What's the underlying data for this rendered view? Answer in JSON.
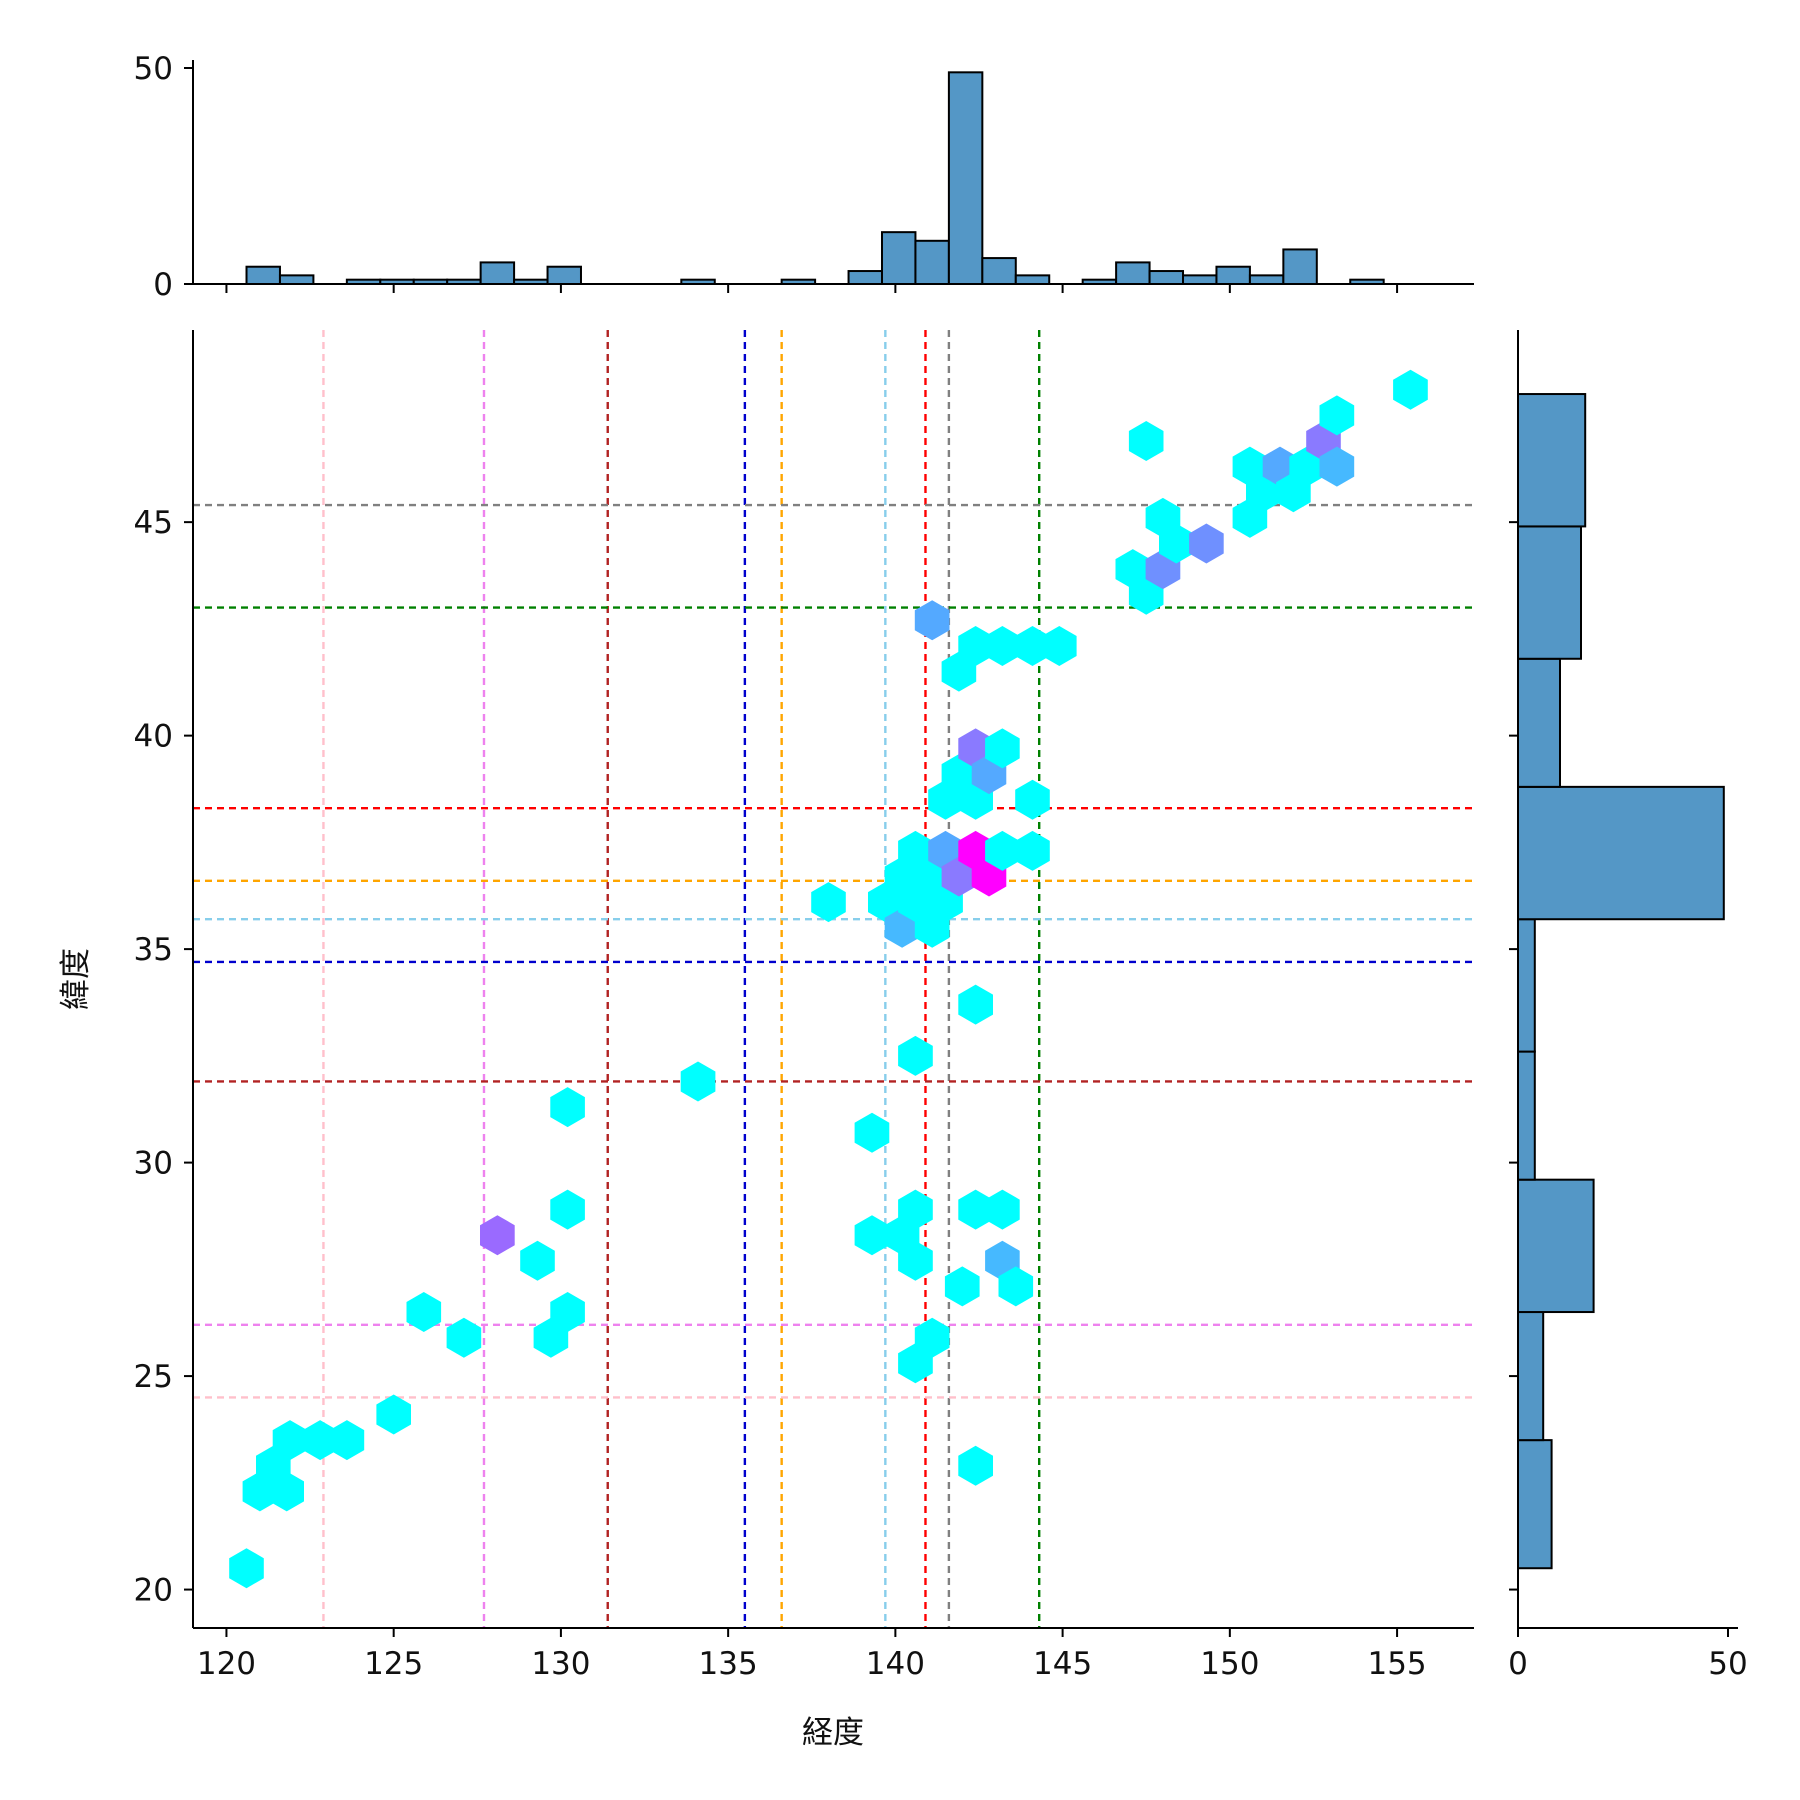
{
  "chart_data": {
    "type": "hexbin-jointplot",
    "xlabel": "経度",
    "ylabel": "緯度",
    "xlim": [
      119,
      157.3
    ],
    "ylim": [
      19.1,
      49.5
    ],
    "xticks": [
      120,
      125,
      130,
      135,
      140,
      145,
      150,
      155
    ],
    "yticks": [
      20,
      25,
      30,
      35,
      40,
      45
    ],
    "marginal_x": {
      "yticks": [
        0,
        50
      ],
      "bins": [
        {
          "x0": 120.6,
          "x1": 121.6,
          "count": 4
        },
        {
          "x0": 121.6,
          "x1": 122.6,
          "count": 2
        },
        {
          "x0": 123.6,
          "x1": 124.6,
          "count": 1
        },
        {
          "x0": 124.6,
          "x1": 125.6,
          "count": 1
        },
        {
          "x0": 125.6,
          "x1": 126.6,
          "count": 1
        },
        {
          "x0": 126.6,
          "x1": 127.6,
          "count": 1
        },
        {
          "x0": 127.6,
          "x1": 128.6,
          "count": 5
        },
        {
          "x0": 128.6,
          "x1": 129.6,
          "count": 1
        },
        {
          "x0": 129.6,
          "x1": 130.6,
          "count": 4
        },
        {
          "x0": 133.6,
          "x1": 134.6,
          "count": 1
        },
        {
          "x0": 136.6,
          "x1": 137.6,
          "count": 1
        },
        {
          "x0": 138.6,
          "x1": 139.6,
          "count": 3
        },
        {
          "x0": 139.6,
          "x1": 140.6,
          "count": 12
        },
        {
          "x0": 140.6,
          "x1": 141.6,
          "count": 10
        },
        {
          "x0": 141.6,
          "x1": 142.6,
          "count": 49
        },
        {
          "x0": 142.6,
          "x1": 143.6,
          "count": 6
        },
        {
          "x0": 143.6,
          "x1": 144.6,
          "count": 2
        },
        {
          "x0": 145.6,
          "x1": 146.6,
          "count": 1
        },
        {
          "x0": 146.6,
          "x1": 147.6,
          "count": 5
        },
        {
          "x0": 147.6,
          "x1": 148.6,
          "count": 3
        },
        {
          "x0": 148.6,
          "x1": 149.6,
          "count": 2
        },
        {
          "x0": 149.6,
          "x1": 150.6,
          "count": 4
        },
        {
          "x0": 150.6,
          "x1": 151.6,
          "count": 2
        },
        {
          "x0": 151.6,
          "x1": 152.6,
          "count": 8
        },
        {
          "x0": 153.6,
          "x1": 154.6,
          "count": 1
        }
      ]
    },
    "marginal_y": {
      "xticks": [
        0,
        50
      ],
      "bins": [
        {
          "y0": 20.5,
          "y1": 23.5,
          "count": 8
        },
        {
          "y0": 23.5,
          "y1": 26.5,
          "count": 6
        },
        {
          "y0": 26.5,
          "y1": 29.6,
          "count": 18
        },
        {
          "y0": 29.6,
          "y1": 32.6,
          "count": 4
        },
        {
          "y0": 32.6,
          "y1": 35.7,
          "count": 4
        },
        {
          "y0": 35.7,
          "y1": 38.8,
          "count": 49
        },
        {
          "y0": 38.8,
          "y1": 41.8,
          "count": 10
        },
        {
          "y0": 41.8,
          "y1": 44.9,
          "count": 15
        },
        {
          "y0": 44.9,
          "y1": 48.0,
          "count": 16
        }
      ]
    },
    "reference_lines": [
      {
        "axis": "x",
        "value": 122.9,
        "color": "#ffc0cb"
      },
      {
        "axis": "x",
        "value": 127.7,
        "color": "#ee82ee"
      },
      {
        "axis": "x",
        "value": 131.4,
        "color": "#b22222"
      },
      {
        "axis": "x",
        "value": 135.5,
        "color": "#0000cd"
      },
      {
        "axis": "x",
        "value": 136.6,
        "color": "#ffa500"
      },
      {
        "axis": "x",
        "value": 139.7,
        "color": "#87ceeb"
      },
      {
        "axis": "x",
        "value": 140.9,
        "color": "#ff0000"
      },
      {
        "axis": "x",
        "value": 141.6,
        "color": "#808080"
      },
      {
        "axis": "x",
        "value": 144.3,
        "color": "#008000"
      },
      {
        "axis": "y",
        "value": 45.4,
        "color": "#808080"
      },
      {
        "axis": "y",
        "value": 43.0,
        "color": "#008000"
      },
      {
        "axis": "y",
        "value": 38.3,
        "color": "#ff0000"
      },
      {
        "axis": "y",
        "value": 36.6,
        "color": "#ffa500"
      },
      {
        "axis": "y",
        "value": 35.7,
        "color": "#87ceeb"
      },
      {
        "axis": "y",
        "value": 34.7,
        "color": "#0000cd"
      },
      {
        "axis": "y",
        "value": 31.9,
        "color": "#b22222"
      },
      {
        "axis": "y",
        "value": 26.2,
        "color": "#ee82ee"
      },
      {
        "axis": "y",
        "value": 24.5,
        "color": "#ffc0cb"
      }
    ],
    "hexbins": [
      {
        "x": 120.6,
        "y": 20.5,
        "color": "#00ffff"
      },
      {
        "x": 121.0,
        "y": 22.3,
        "color": "#00ffff"
      },
      {
        "x": 121.8,
        "y": 22.3,
        "color": "#00ffff"
      },
      {
        "x": 121.4,
        "y": 22.9,
        "color": "#00ffff"
      },
      {
        "x": 121.9,
        "y": 23.5,
        "color": "#00ffff"
      },
      {
        "x": 122.8,
        "y": 23.5,
        "color": "#00ffff"
      },
      {
        "x": 123.6,
        "y": 23.5,
        "color": "#00ffff"
      },
      {
        "x": 125.0,
        "y": 24.1,
        "color": "#00ffff"
      },
      {
        "x": 125.9,
        "y": 26.5,
        "color": "#00ffff"
      },
      {
        "x": 127.1,
        "y": 25.9,
        "color": "#00ffff"
      },
      {
        "x": 128.1,
        "y": 28.3,
        "color": "#9a6aff"
      },
      {
        "x": 129.3,
        "y": 27.7,
        "color": "#00ffff"
      },
      {
        "x": 129.7,
        "y": 25.9,
        "color": "#00ffff"
      },
      {
        "x": 130.2,
        "y": 26.5,
        "color": "#00ffff"
      },
      {
        "x": 130.2,
        "y": 28.9,
        "color": "#00ffff"
      },
      {
        "x": 130.2,
        "y": 31.3,
        "color": "#00ffff"
      },
      {
        "x": 134.1,
        "y": 31.9,
        "color": "#00ffff"
      },
      {
        "x": 138.0,
        "y": 36.1,
        "color": "#00ffff"
      },
      {
        "x": 139.3,
        "y": 30.7,
        "color": "#00ffff"
      },
      {
        "x": 139.3,
        "y": 28.3,
        "color": "#00ffff"
      },
      {
        "x": 140.2,
        "y": 28.3,
        "color": "#00ffff"
      },
      {
        "x": 140.6,
        "y": 28.9,
        "color": "#00ffff"
      },
      {
        "x": 140.6,
        "y": 27.7,
        "color": "#00ffff"
      },
      {
        "x": 140.6,
        "y": 25.3,
        "color": "#00ffff"
      },
      {
        "x": 141.1,
        "y": 25.9,
        "color": "#00ffff"
      },
      {
        "x": 140.6,
        "y": 32.5,
        "color": "#00ffff"
      },
      {
        "x": 139.7,
        "y": 36.1,
        "color": "#00ffff"
      },
      {
        "x": 140.2,
        "y": 35.5,
        "color": "#46b9ff"
      },
      {
        "x": 140.2,
        "y": 36.7,
        "color": "#00ffff"
      },
      {
        "x": 140.6,
        "y": 37.3,
        "color": "#00ffff"
      },
      {
        "x": 140.6,
        "y": 36.1,
        "color": "#00ffff"
      },
      {
        "x": 141.1,
        "y": 35.5,
        "color": "#00ffff"
      },
      {
        "x": 141.1,
        "y": 36.7,
        "color": "#00ffff"
      },
      {
        "x": 141.5,
        "y": 36.1,
        "color": "#00ffff"
      },
      {
        "x": 141.5,
        "y": 37.3,
        "color": "#54a9ff"
      },
      {
        "x": 141.5,
        "y": 38.5,
        "color": "#00ffff"
      },
      {
        "x": 141.9,
        "y": 36.7,
        "color": "#8a7aff"
      },
      {
        "x": 142.4,
        "y": 37.3,
        "color": "#ff00ff"
      },
      {
        "x": 142.8,
        "y": 36.7,
        "color": "#ff00ff"
      },
      {
        "x": 142.4,
        "y": 38.5,
        "color": "#00ffff"
      },
      {
        "x": 141.9,
        "y": 39.1,
        "color": "#00ffff"
      },
      {
        "x": 142.4,
        "y": 39.7,
        "color": "#8a7aff"
      },
      {
        "x": 142.8,
        "y": 39.1,
        "color": "#54a9ff"
      },
      {
        "x": 143.2,
        "y": 39.7,
        "color": "#00ffff"
      },
      {
        "x": 143.2,
        "y": 37.3,
        "color": "#00ffff"
      },
      {
        "x": 144.1,
        "y": 37.3,
        "color": "#00ffff"
      },
      {
        "x": 144.1,
        "y": 38.5,
        "color": "#00ffff"
      },
      {
        "x": 141.1,
        "y": 42.7,
        "color": "#54a9ff"
      },
      {
        "x": 141.9,
        "y": 41.5,
        "color": "#00ffff"
      },
      {
        "x": 142.4,
        "y": 42.1,
        "color": "#00ffff"
      },
      {
        "x": 143.2,
        "y": 42.1,
        "color": "#00ffff"
      },
      {
        "x": 144.1,
        "y": 42.1,
        "color": "#00ffff"
      },
      {
        "x": 144.9,
        "y": 42.1,
        "color": "#00ffff"
      },
      {
        "x": 142.4,
        "y": 33.7,
        "color": "#00ffff"
      },
      {
        "x": 142.4,
        "y": 28.9,
        "color": "#00ffff"
      },
      {
        "x": 143.2,
        "y": 28.9,
        "color": "#00ffff"
      },
      {
        "x": 143.2,
        "y": 27.7,
        "color": "#46b9ff"
      },
      {
        "x": 142.0,
        "y": 27.1,
        "color": "#00ffff"
      },
      {
        "x": 143.6,
        "y": 27.1,
        "color": "#00ffff"
      },
      {
        "x": 142.4,
        "y": 22.9,
        "color": "#00ffff"
      },
      {
        "x": 147.1,
        "y": 43.9,
        "color": "#00ffff"
      },
      {
        "x": 147.5,
        "y": 43.3,
        "color": "#00ffff"
      },
      {
        "x": 148.0,
        "y": 43.9,
        "color": "#6f90ff"
      },
      {
        "x": 147.5,
        "y": 46.9,
        "color": "#00ffff"
      },
      {
        "x": 148.0,
        "y": 45.1,
        "color": "#00ffff"
      },
      {
        "x": 148.4,
        "y": 44.5,
        "color": "#00ffff"
      },
      {
        "x": 149.3,
        "y": 44.5,
        "color": "#6f90ff"
      },
      {
        "x": 150.6,
        "y": 45.1,
        "color": "#00ffff"
      },
      {
        "x": 150.6,
        "y": 46.3,
        "color": "#00ffff"
      },
      {
        "x": 151.0,
        "y": 45.7,
        "color": "#00ffff"
      },
      {
        "x": 151.5,
        "y": 46.3,
        "color": "#54a9ff"
      },
      {
        "x": 151.9,
        "y": 45.7,
        "color": "#00ffff"
      },
      {
        "x": 152.3,
        "y": 46.3,
        "color": "#00ffff"
      },
      {
        "x": 152.8,
        "y": 46.9,
        "color": "#8a7aff"
      },
      {
        "x": 153.2,
        "y": 46.3,
        "color": "#46b9ff"
      },
      {
        "x": 153.2,
        "y": 47.5,
        "color": "#00ffff"
      },
      {
        "x": 155.4,
        "y": 48.1,
        "color": "#00ffff"
      }
    ]
  }
}
